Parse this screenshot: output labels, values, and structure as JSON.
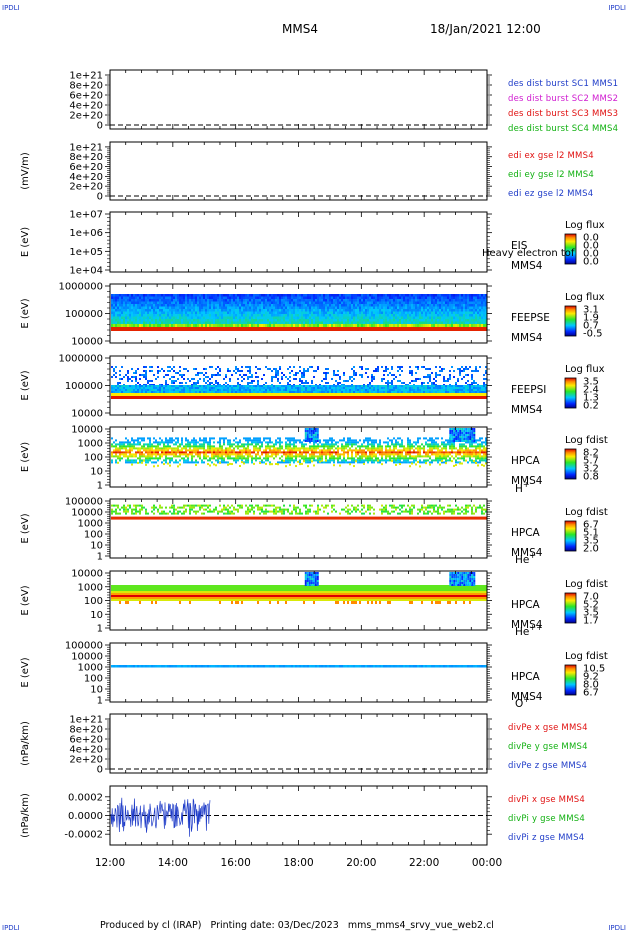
{
  "header": {
    "corner_tl": "IPDLI",
    "corner_tr": "IPDLI",
    "corner_bl": "IPDLI",
    "corner_br": "IPDLI",
    "spacecraft": "MMS4",
    "datetime": "18/Jan/2021 12:00"
  },
  "footer": {
    "text": "Produced by cl (IRAP)   Printing date: 03/Dec/2023   mms_mms4_srvy_vue_web2.cl"
  },
  "colors": {
    "blue": "#1f3cc8",
    "magenta": "#d01cd0",
    "red": "#e01010",
    "green": "#10b010",
    "frame": "#000000"
  },
  "time_axis": {
    "ticks": [
      "12:00",
      "14:00",
      "16:00",
      "18:00",
      "20:00",
      "22:00",
      "00:00"
    ],
    "range_hours": [
      12,
      24
    ]
  },
  "chart_data": [
    {
      "id": "p1",
      "type": "line",
      "ylabel": "",
      "yticks": [
        "1e+21",
        "8e+20",
        "6e+20",
        "4e+20",
        "2e+20",
        "0"
      ],
      "ylim": [
        0,
        1.1e+21
      ],
      "zero_line": true,
      "legend": [
        {
          "text": "des dist burst SC1 MMS1",
          "color": "#1f3cc8"
        },
        {
          "text": "des dist burst SC2 MMS2",
          "color": "#d01cd0"
        },
        {
          "text": "des dist burst SC3 MMS3",
          "color": "#e01010"
        },
        {
          "text": "des dist burst SC4 MMS4",
          "color": "#10b010"
        }
      ]
    },
    {
      "id": "p2",
      "type": "line",
      "ylabel": "(mV/m)",
      "yticks": [
        "1e+21",
        "8e+20",
        "6e+20",
        "4e+20",
        "2e+20",
        "0"
      ],
      "ylim": [
        0,
        1.1e+21
      ],
      "zero_line": true,
      "legend": [
        {
          "text": "edi ex gse l2 MMS4",
          "color": "#e01010"
        },
        {
          "text": "edi ey gse l2 MMS4",
          "color": "#10b010"
        },
        {
          "text": "edi ez gse l2 MMS4",
          "color": "#1f3cc8"
        }
      ]
    },
    {
      "id": "p3",
      "type": "heatmap",
      "ylabel": "E (eV)",
      "yticks": [
        "1e+07",
        "1e+06",
        "1e+05",
        "1e+04"
      ],
      "instrument": "EIS",
      "spacecraft": "MMS4",
      "overlay_text": "Heavy electron tof",
      "cbar_title": "Log flux",
      "cbar_ticks": [
        "0.0",
        "0.0",
        "0.0",
        "0.0"
      ]
    },
    {
      "id": "p4",
      "type": "heatmap",
      "ylabel": "E (eV)",
      "yticks": [
        "1000000",
        "100000",
        "10000"
      ],
      "instrument": "FEEPSE",
      "spacecraft": "MMS4",
      "cbar_title": "Log flux",
      "cbar_ticks": [
        "3.1",
        "1.9",
        "0.7",
        "-0.5"
      ]
    },
    {
      "id": "p5",
      "type": "heatmap",
      "ylabel": "E (eV)",
      "yticks": [
        "1000000",
        "100000",
        "10000"
      ],
      "instrument": "FEEPSI",
      "spacecraft": "MMS4",
      "cbar_title": "Log flux",
      "cbar_ticks": [
        "3.5",
        "2.4",
        "1.3",
        "0.2"
      ]
    },
    {
      "id": "p6",
      "type": "heatmap",
      "ylabel": "E (eV)",
      "yticks": [
        "10000",
        "1000",
        "100",
        "10",
        "1"
      ],
      "instrument": "HPCA",
      "spacecraft": "MMS4",
      "species": "H",
      "species_sup": "+",
      "cbar_title": "Log fdist",
      "cbar_ticks": [
        "8.2",
        "5.7",
        "3.2",
        "0.8"
      ]
    },
    {
      "id": "p7",
      "type": "heatmap",
      "ylabel": "E (eV)",
      "yticks": [
        "100000",
        "10000",
        "1000",
        "100",
        "10",
        "1"
      ],
      "instrument": "HPCA",
      "spacecraft": "MMS4",
      "species": "He",
      "species_sup": "+",
      "cbar_title": "Log fdist",
      "cbar_ticks": [
        "6.7",
        "5.1",
        "3.5",
        "2.0"
      ]
    },
    {
      "id": "p8",
      "type": "heatmap",
      "ylabel": "E (eV)",
      "yticks": [
        "10000",
        "1000",
        "100",
        "10",
        "1"
      ],
      "instrument": "HPCA",
      "spacecraft": "MMS4",
      "species": "He",
      "species_sup": "++",
      "cbar_title": "Log fdist",
      "cbar_ticks": [
        "7.0",
        "5.2",
        "3.5",
        "1.7"
      ]
    },
    {
      "id": "p9",
      "type": "heatmap",
      "ylabel": "E (eV)",
      "yticks": [
        "100000",
        "10000",
        "1000",
        "100",
        "10",
        "1"
      ],
      "instrument": "HPCA",
      "spacecraft": "MMS4",
      "species": "O",
      "species_sup": "+",
      "cbar_title": "Log fdist",
      "cbar_ticks": [
        "10.5",
        "9.2",
        "8.0",
        "6.7"
      ]
    },
    {
      "id": "p10",
      "type": "line",
      "ylabel": "(nPa/km)",
      "yticks": [
        "1e+21",
        "8e+20",
        "6e+20",
        "4e+20",
        "2e+20",
        "0"
      ],
      "ylim": [
        0,
        1.1e+21
      ],
      "zero_line": true,
      "legend": [
        {
          "text": "divPe x gse MMS4",
          "color": "#e01010"
        },
        {
          "text": "divPe y gse MMS4",
          "color": "#10b010"
        },
        {
          "text": "divPe z gse MMS4",
          "color": "#1f3cc8"
        }
      ]
    },
    {
      "id": "p11",
      "type": "line",
      "ylabel": "(nPa/km)",
      "yticks": [
        "0.0002",
        "0.0000",
        "-0.0002"
      ],
      "ylim": [
        -0.0003,
        0.0003
      ],
      "zero_line": true,
      "series_end_hour": 15.2,
      "amplitude": 0.00022,
      "legend": [
        {
          "text": "divPi x gse MMS4",
          "color": "#e01010"
        },
        {
          "text": "divPi y gse MMS4",
          "color": "#10b010"
        },
        {
          "text": "divPi z gse MMS4",
          "color": "#1f3cc8"
        }
      ]
    }
  ]
}
